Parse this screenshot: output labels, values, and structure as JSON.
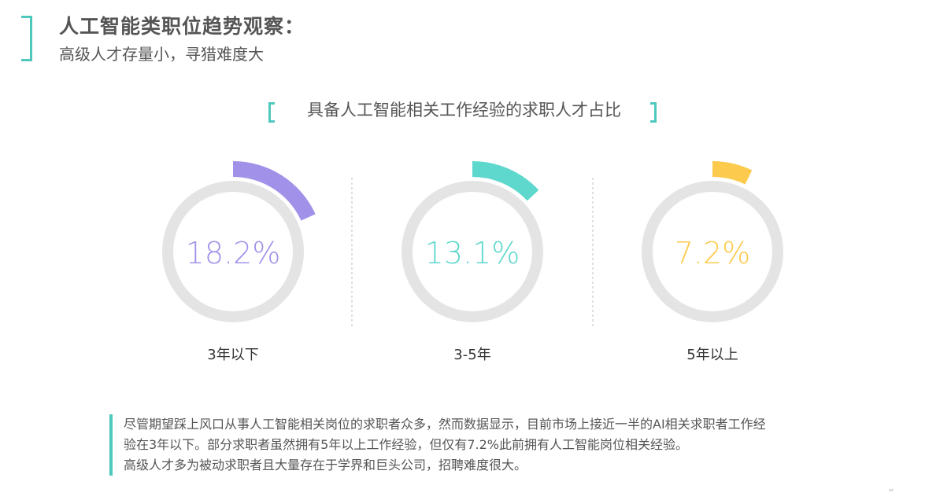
{
  "header": {
    "title": "人工智能类职位趋势观察：",
    "subtitle": "高级人才存量小，寻猎难度大"
  },
  "chart_title": "具备人工智能相关工作经验的求职人才占比",
  "colors": {
    "accent": "#4fc7bd",
    "track": "#e4e4e4",
    "divider": "#cccccc",
    "series": [
      "#a291e8",
      "#5ed8cd",
      "#fcca4d"
    ]
  },
  "chart_data": {
    "type": "pie",
    "title": "具备人工智能相关工作经验的求职人才占比",
    "categories": [
      "3年以下",
      "3-5年",
      "5年以上"
    ],
    "values": [
      18.2,
      13.1,
      7.2
    ],
    "labels": [
      "18.2%",
      "13.1%",
      "7.2%"
    ]
  },
  "note": {
    "lines": [
      "尽管期望踩上风口从事人工智能相关岗位的求职者众多，然而数据显示，目前市场上接近一半的AI相关求职者工作经",
      "验在3年以下。部分求职者虽然拥有5年以上工作经验，但仅有7.2%此前拥有人工智能岗位相关经验。",
      "高级人才多为被动求职者且大量存在于学界和巨头公司，招聘难度很大。"
    ]
  },
  "corner_mark": "“"
}
